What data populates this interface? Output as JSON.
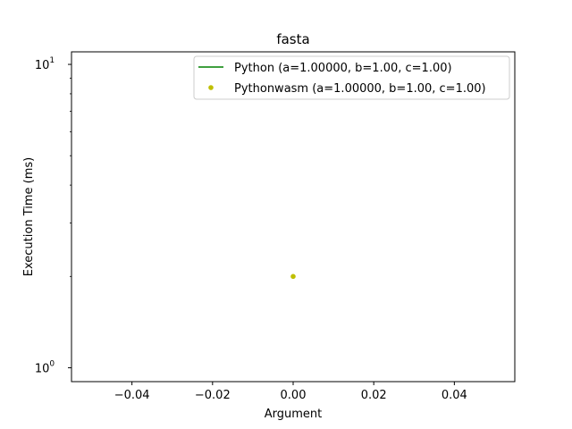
{
  "chart_data": {
    "type": "line",
    "title": "fasta",
    "xlabel": "Argument",
    "ylabel": "Execution Time (ms)",
    "xlim": [
      -0.055,
      0.055
    ],
    "ylim": [
      0.9,
      11.0
    ],
    "yscale": "log",
    "grid": false,
    "legend_position": "top-right",
    "x_ticks": [
      -0.04,
      -0.02,
      0.0,
      0.02,
      0.04
    ],
    "x_tick_labels": [
      "−0.04",
      "−0.02",
      "0.00",
      "0.02",
      "0.04"
    ],
    "y_major_ticks": [
      1,
      10
    ],
    "y_tick_labels": [
      {
        "base": "10",
        "exp": "0"
      },
      {
        "base": "10",
        "exp": "1"
      }
    ],
    "y_minor_ticks": [
      2,
      3,
      4,
      5,
      6,
      7,
      8,
      9
    ],
    "series": [
      {
        "name": "Python (a=1.00000, b=1.00, c=1.00)",
        "style": "line",
        "color": "#008000",
        "x": [],
        "y": []
      },
      {
        "name": "Pythonwasm (a=1.00000, b=1.00, c=1.00)",
        "style": "marker",
        "color": "#bfbf00",
        "x": [
          0.0
        ],
        "y": [
          2.0
        ]
      }
    ]
  }
}
